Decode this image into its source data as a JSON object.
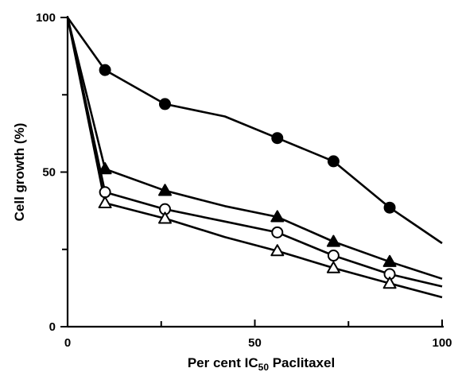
{
  "chart_data": {
    "type": "line",
    "title": "",
    "xlabel": "Per cent IC",
    "xlabel_sub": "50",
    "xlabel_suffix": " Paclitaxel",
    "ylabel": "Cell growth (%)",
    "xlim": [
      0,
      100
    ],
    "ylim": [
      0,
      100
    ],
    "x_ticks": [
      0,
      50,
      100
    ],
    "x_tick_labels": [
      "0",
      "50",
      "100"
    ],
    "x_minor_ticks": [
      25,
      75
    ],
    "y_ticks": [
      0,
      50,
      100
    ],
    "y_tick_labels": [
      "0",
      "50",
      "100"
    ],
    "y_minor_ticks": [
      25,
      75
    ],
    "grid": false,
    "series": [
      {
        "marker": "filled-circle",
        "x": [
          0,
          10,
          26,
          42,
          56,
          71,
          86,
          100
        ],
        "y": [
          100,
          83,
          72,
          68,
          61,
          53.5,
          38.5,
          27
        ],
        "marked": [
          false,
          true,
          true,
          false,
          true,
          true,
          true,
          false
        ]
      },
      {
        "marker": "filled-triangle",
        "x": [
          0,
          10,
          26,
          42,
          56,
          71,
          86,
          100
        ],
        "y": [
          100,
          51,
          44,
          39,
          35.5,
          27.5,
          21,
          15.5
        ],
        "marked": [
          false,
          true,
          true,
          false,
          true,
          true,
          true,
          false
        ]
      },
      {
        "marker": "open-circle",
        "x": [
          0,
          10,
          26,
          42,
          56,
          71,
          86,
          100
        ],
        "y": [
          100,
          43.5,
          38,
          34,
          30.5,
          23,
          17,
          13
        ],
        "marked": [
          false,
          true,
          true,
          false,
          true,
          true,
          true,
          false
        ]
      },
      {
        "marker": "open-triangle",
        "x": [
          0,
          10,
          26,
          42,
          56,
          71,
          86,
          100
        ],
        "y": [
          100,
          40,
          35,
          29,
          24.5,
          19,
          14,
          9.5
        ],
        "marked": [
          false,
          true,
          true,
          false,
          true,
          true,
          true,
          false
        ]
      }
    ]
  }
}
